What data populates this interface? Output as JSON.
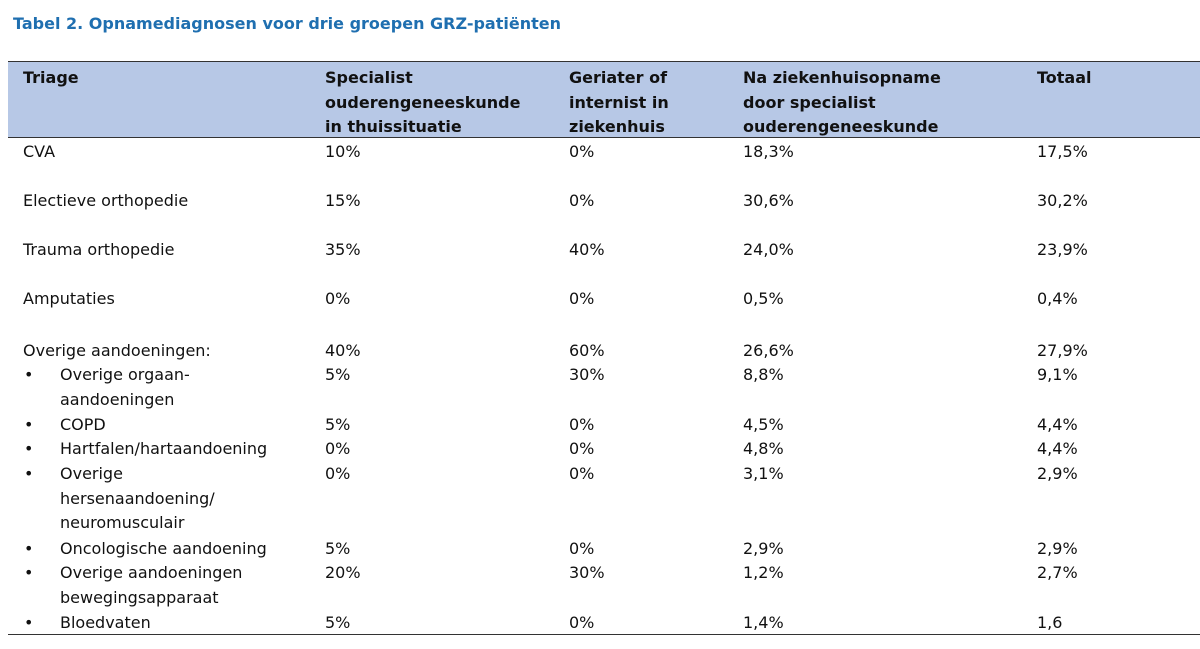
{
  "title": "Tabel 2. Opnamediagnosen voor drie groepen GRZ-patiënten",
  "headers": [
    [
      "Triage"
    ],
    [
      "Specialist",
      "ouderengeneeskunde",
      "in thuissituatie"
    ],
    [
      "Geriater of",
      "internist in",
      "ziekenhuis"
    ],
    [
      "Na ziekenhuisopname",
      "door specialist",
      "ouderengeneeskunde"
    ],
    [
      "Totaal"
    ]
  ],
  "rows": [
    {
      "bullet": false,
      "label": [
        "CVA"
      ],
      "values": [
        "10%",
        "0%",
        "18,3%",
        "17,5%"
      ]
    },
    {
      "bullet": false,
      "label": [
        "Electieve orthopedie"
      ],
      "values": [
        "15%",
        "0%",
        "30,6%",
        "30,2%"
      ]
    },
    {
      "bullet": false,
      "label": [
        "Trauma orthopedie"
      ],
      "values": [
        "35%",
        "40%",
        "24,0%",
        "23,9%"
      ]
    },
    {
      "bullet": false,
      "label": [
        "Amputaties"
      ],
      "values": [
        "0%",
        "0%",
        "0,5%",
        "0,4%"
      ]
    },
    {
      "bullet": false,
      "label": [
        "Overige aandoeningen:"
      ],
      "values": [
        "40%",
        "60%",
        "26,6%",
        "27,9%"
      ]
    },
    {
      "bullet": true,
      "label": [
        "Overige orgaan-",
        "aandoeningen"
      ],
      "values": [
        "5%",
        "30%",
        "8,8%",
        "9,1%"
      ]
    },
    {
      "bullet": true,
      "label": [
        "COPD"
      ],
      "values": [
        "5%",
        "0%",
        "4,5%",
        "4,4%"
      ]
    },
    {
      "bullet": true,
      "label": [
        "Hartfalen/hartaandoening"
      ],
      "values": [
        "0%",
        "0%",
        "4,8%",
        "4,4%"
      ]
    },
    {
      "bullet": true,
      "label": [
        "Overige",
        "hersenaandoening/",
        "neuromusculair"
      ],
      "values": [
        "0%",
        "0%",
        "3,1%",
        "2,9%"
      ]
    },
    {
      "bullet": true,
      "label": [
        "Oncologische aandoening"
      ],
      "values": [
        "5%",
        "0%",
        "2,9%",
        "2,9%"
      ]
    },
    {
      "bullet": true,
      "label": [
        "Overige aandoeningen",
        "bewegingsapparaat"
      ],
      "values": [
        "20%",
        "30%",
        "1,2%",
        "2,7%"
      ]
    },
    {
      "bullet": true,
      "label": [
        "Bloedvaten"
      ],
      "values": [
        "5%",
        "0%",
        "1,4%",
        "1,6"
      ]
    }
  ],
  "bullet_glyph": "•"
}
